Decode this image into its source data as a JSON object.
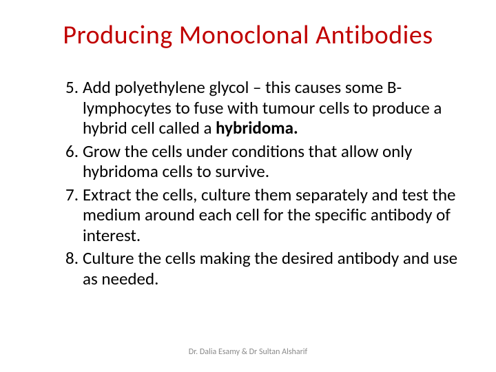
{
  "slide": {
    "title": "Producing Monoclonal Antibodies",
    "title_color": "#c00000",
    "title_fontsize": 38,
    "body_fontsize": 25,
    "body_color": "#000000",
    "start_number": 5,
    "items": [
      {
        "pre": "Add polyethylene glycol – this causes some B-lymphocytes to fuse with tumour cells to produce a hybrid cell called a ",
        "bold": "hybridoma.",
        "post": ""
      },
      {
        "pre": "Grow the cells under conditions that allow only hybridoma cells to survive.",
        "bold": "",
        "post": ""
      },
      {
        "pre": "Extract the cells, culture them separately and test the medium around each cell for the specific antibody of interest.",
        "bold": "",
        "post": ""
      },
      {
        "pre": "Culture the cells making the desired antibody and use as needed.",
        "bold": "",
        "post": ""
      }
    ],
    "footer": "Dr. Dalia Esamy & Dr Sultan Alsharif",
    "footer_color": "#898989",
    "footer_fontsize": 12,
    "background_color": "#ffffff"
  }
}
